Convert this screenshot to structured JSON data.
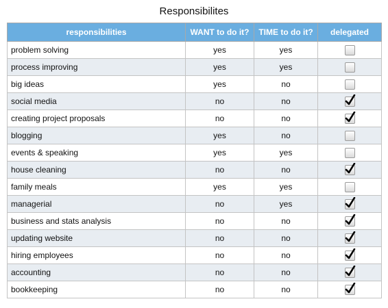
{
  "title": "Responsibilites",
  "headers": {
    "responsibilities": "responsibilities",
    "want": "WANT to do it?",
    "time": "TIME to do it?",
    "delegated": "delegated"
  },
  "colors": {
    "header_bg": "#6aaee0",
    "yes": "#5a9e1e",
    "no": "#d0141e",
    "row_stripe": "#e8edf2"
  },
  "rows": [
    {
      "name": "problem solving",
      "want": "yes",
      "time": "yes",
      "delegated": false
    },
    {
      "name": "process improving",
      "want": "yes",
      "time": "yes",
      "delegated": false
    },
    {
      "name": "big ideas",
      "want": "yes",
      "time": "no",
      "delegated": false
    },
    {
      "name": "social media",
      "want": "no",
      "time": "no",
      "delegated": true
    },
    {
      "name": "creating project proposals",
      "want": "no",
      "time": "no",
      "delegated": true
    },
    {
      "name": "blogging",
      "want": "yes",
      "time": "no",
      "delegated": false
    },
    {
      "name": "events & speaking",
      "want": "yes",
      "time": "yes",
      "delegated": false
    },
    {
      "name": "house cleaning",
      "want": "no",
      "time": "no",
      "delegated": true
    },
    {
      "name": "family meals",
      "want": "yes",
      "time": "yes",
      "delegated": false
    },
    {
      "name": "managerial",
      "want": "no",
      "time": "yes",
      "delegated": true
    },
    {
      "name": "business and stats analysis",
      "want": "no",
      "time": "no",
      "delegated": true
    },
    {
      "name": "updating website",
      "want": "no",
      "time": "no",
      "delegated": true
    },
    {
      "name": "hiring employees",
      "want": "no",
      "time": "no",
      "delegated": true
    },
    {
      "name": "accounting",
      "want": "no",
      "time": "no",
      "delegated": true
    },
    {
      "name": "bookkeeping",
      "want": "no",
      "time": "no",
      "delegated": true
    }
  ]
}
